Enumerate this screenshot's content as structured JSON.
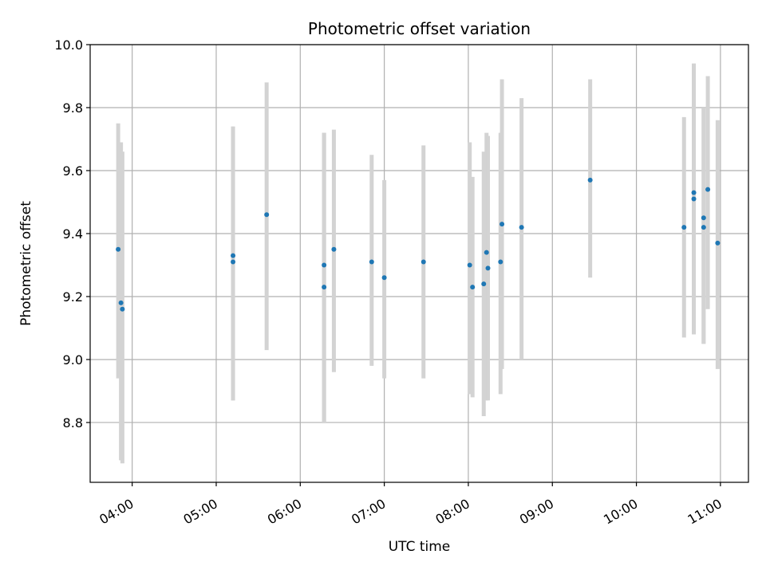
{
  "chart_data": {
    "type": "scatter",
    "title": "Photometric offset variation",
    "xlabel": "UTC time",
    "ylabel": "Photometric offset",
    "x_unit": "HH:MM",
    "xlim": [
      "03:30",
      "11:20"
    ],
    "ylim": [
      8.61,
      10.0
    ],
    "grid": true,
    "x_ticks": [
      "04:00",
      "05:00",
      "06:00",
      "07:00",
      "08:00",
      "09:00",
      "10:00",
      "11:00"
    ],
    "y_ticks": [
      "8.8",
      "9.0",
      "9.2",
      "9.4",
      "9.6",
      "9.8",
      "10.0"
    ],
    "colors": {
      "point": "#1f77b4",
      "errorbar": "#d3d3d3",
      "grid": "#b0b0b0",
      "axes": "#000000"
    },
    "series": [
      {
        "points": [
          {
            "x": "03:50",
            "y": 9.35,
            "ylow": 8.94,
            "yhigh": 9.75
          },
          {
            "x": "03:52",
            "y": 9.18,
            "ylow": 8.68,
            "yhigh": 9.69
          },
          {
            "x": "03:53",
            "y": 9.16,
            "ylow": 8.67,
            "yhigh": 9.66
          },
          {
            "x": "05:12",
            "y": 9.33,
            "ylow": 8.87,
            "yhigh": 9.74
          },
          {
            "x": "05:12",
            "y": 9.31,
            "ylow": 8.87,
            "yhigh": 9.74
          },
          {
            "x": "05:36",
            "y": 9.46,
            "ylow": 9.03,
            "yhigh": 9.88
          },
          {
            "x": "06:17",
            "y": 9.3,
            "ylow": 8.8,
            "yhigh": 9.72
          },
          {
            "x": "06:17",
            "y": 9.23,
            "ylow": 8.8,
            "yhigh": 9.72
          },
          {
            "x": "06:24",
            "y": 9.35,
            "ylow": 8.96,
            "yhigh": 9.73
          },
          {
            "x": "06:51",
            "y": 9.31,
            "ylow": 8.98,
            "yhigh": 9.65
          },
          {
            "x": "07:00",
            "y": 9.26,
            "ylow": 8.94,
            "yhigh": 9.57
          },
          {
            "x": "07:28",
            "y": 9.31,
            "ylow": 8.94,
            "yhigh": 9.68
          },
          {
            "x": "08:01",
            "y": 9.3,
            "ylow": 8.89,
            "yhigh": 9.69
          },
          {
            "x": "08:03",
            "y": 9.23,
            "ylow": 8.88,
            "yhigh": 9.58
          },
          {
            "x": "08:11",
            "y": 9.24,
            "ylow": 8.82,
            "yhigh": 9.66
          },
          {
            "x": "08:13",
            "y": 9.34,
            "ylow": 8.87,
            "yhigh": 9.72
          },
          {
            "x": "08:14",
            "y": 9.29,
            "ylow": 8.87,
            "yhigh": 9.71
          },
          {
            "x": "08:23",
            "y": 9.31,
            "ylow": 8.89,
            "yhigh": 9.72
          },
          {
            "x": "08:24",
            "y": 9.43,
            "ylow": 8.97,
            "yhigh": 9.89
          },
          {
            "x": "08:38",
            "y": 9.42,
            "ylow": 9.0,
            "yhigh": 9.83
          },
          {
            "x": "09:27",
            "y": 9.57,
            "ylow": 9.26,
            "yhigh": 9.89
          },
          {
            "x": "10:34",
            "y": 9.42,
            "ylow": 9.07,
            "yhigh": 9.77
          },
          {
            "x": "10:41",
            "y": 9.53,
            "ylow": 9.08,
            "yhigh": 9.94
          },
          {
            "x": "10:41",
            "y": 9.51,
            "ylow": 9.08,
            "yhigh": 9.94
          },
          {
            "x": "10:48",
            "y": 9.45,
            "ylow": 9.05,
            "yhigh": 9.8
          },
          {
            "x": "10:48",
            "y": 9.42,
            "ylow": 9.05,
            "yhigh": 9.8
          },
          {
            "x": "10:51",
            "y": 9.54,
            "ylow": 9.16,
            "yhigh": 9.9
          },
          {
            "x": "10:58",
            "y": 9.37,
            "ylow": 8.97,
            "yhigh": 9.76
          }
        ]
      }
    ]
  }
}
